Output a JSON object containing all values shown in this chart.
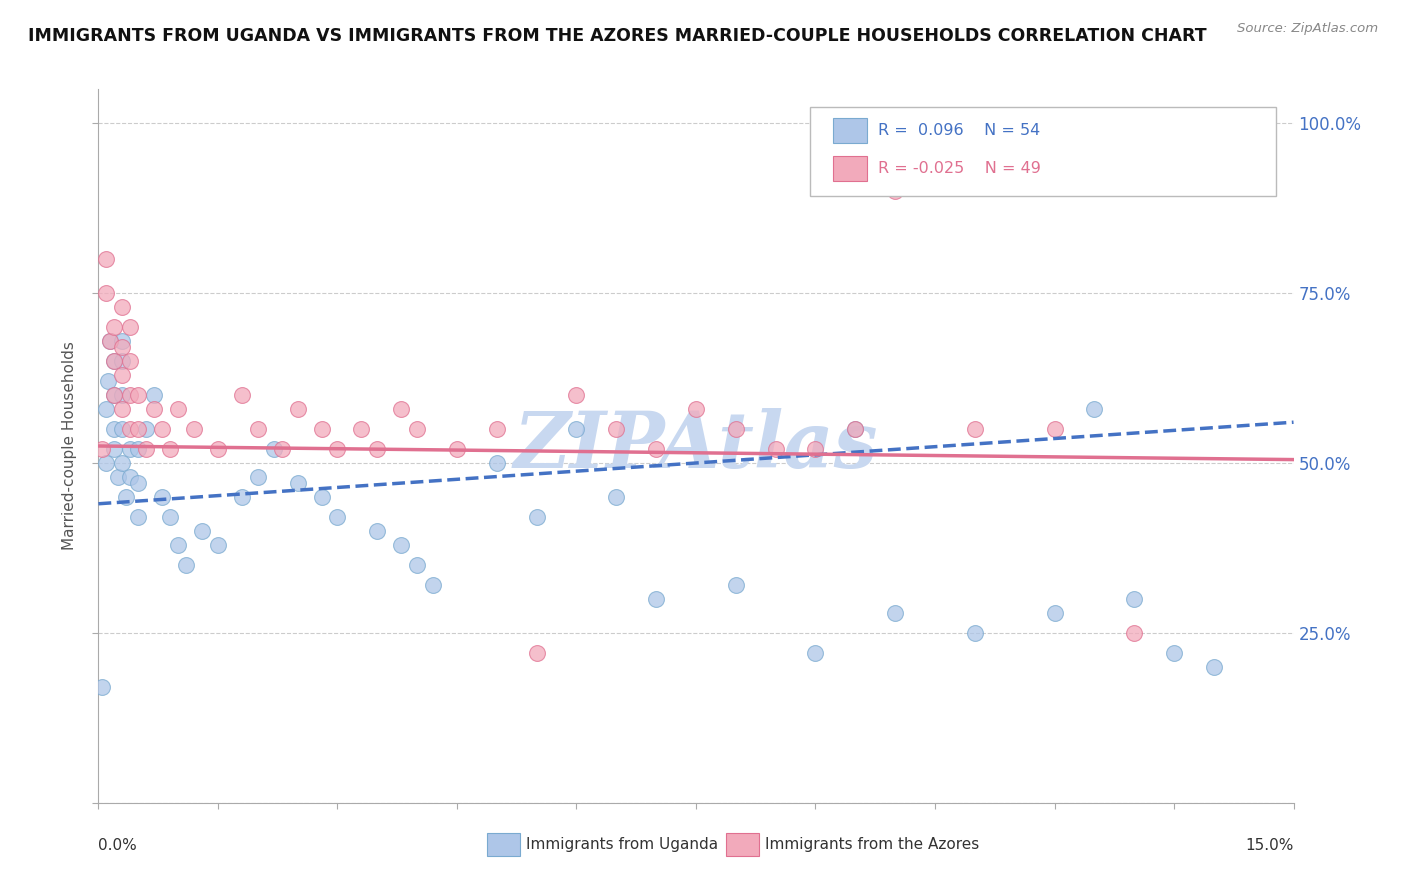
{
  "title": "IMMIGRANTS FROM UGANDA VS IMMIGRANTS FROM THE AZORES MARRIED-COUPLE HOUSEHOLDS CORRELATION CHART",
  "source": "Source: ZipAtlas.com",
  "ylabel": "Married-couple Households",
  "legend_blue_r": "R =  0.096",
  "legend_blue_n": "N = 54",
  "legend_pink_r": "R = -0.025",
  "legend_pink_n": "N = 49",
  "legend_label_blue": "Immigrants from Uganda",
  "legend_label_pink": "Immigrants from the Azores",
  "blue_color": "#AEC6E8",
  "pink_color": "#F2AABB",
  "blue_edge_color": "#7AAAD0",
  "pink_edge_color": "#E07090",
  "blue_line_color": "#4472C4",
  "pink_line_color": "#E07090",
  "watermark": "ZIPAtlas",
  "watermark_color": "#C8D8F0",
  "xlim": [
    0.0,
    0.15
  ],
  "ylim": [
    0.0,
    1.05
  ],
  "blue_x": [
    0.0005,
    0.001,
    0.001,
    0.0012,
    0.0015,
    0.002,
    0.002,
    0.002,
    0.002,
    0.0025,
    0.003,
    0.003,
    0.003,
    0.003,
    0.003,
    0.0035,
    0.004,
    0.004,
    0.005,
    0.005,
    0.005,
    0.006,
    0.007,
    0.008,
    0.009,
    0.01,
    0.011,
    0.013,
    0.015,
    0.018,
    0.02,
    0.022,
    0.025,
    0.028,
    0.03,
    0.035,
    0.038,
    0.04,
    0.042,
    0.05,
    0.055,
    0.06,
    0.065,
    0.07,
    0.08,
    0.09,
    0.095,
    0.1,
    0.11,
    0.12,
    0.125,
    0.13,
    0.135,
    0.14
  ],
  "blue_y": [
    0.17,
    0.5,
    0.58,
    0.62,
    0.68,
    0.52,
    0.55,
    0.6,
    0.65,
    0.48,
    0.5,
    0.55,
    0.6,
    0.65,
    0.68,
    0.45,
    0.48,
    0.52,
    0.42,
    0.47,
    0.52,
    0.55,
    0.6,
    0.45,
    0.42,
    0.38,
    0.35,
    0.4,
    0.38,
    0.45,
    0.48,
    0.52,
    0.47,
    0.45,
    0.42,
    0.4,
    0.38,
    0.35,
    0.32,
    0.5,
    0.42,
    0.55,
    0.45,
    0.3,
    0.32,
    0.22,
    0.55,
    0.28,
    0.25,
    0.28,
    0.58,
    0.3,
    0.22,
    0.2
  ],
  "pink_x": [
    0.0005,
    0.001,
    0.001,
    0.0015,
    0.002,
    0.002,
    0.002,
    0.003,
    0.003,
    0.003,
    0.003,
    0.004,
    0.004,
    0.004,
    0.004,
    0.005,
    0.005,
    0.006,
    0.007,
    0.008,
    0.009,
    0.01,
    0.012,
    0.015,
    0.018,
    0.02,
    0.023,
    0.025,
    0.028,
    0.03,
    0.033,
    0.035,
    0.038,
    0.04,
    0.045,
    0.05,
    0.055,
    0.06,
    0.065,
    0.07,
    0.075,
    0.08,
    0.085,
    0.09,
    0.095,
    0.1,
    0.11,
    0.12,
    0.13
  ],
  "pink_y": [
    0.52,
    0.8,
    0.75,
    0.68,
    0.6,
    0.65,
    0.7,
    0.58,
    0.63,
    0.67,
    0.73,
    0.55,
    0.6,
    0.65,
    0.7,
    0.55,
    0.6,
    0.52,
    0.58,
    0.55,
    0.52,
    0.58,
    0.55,
    0.52,
    0.6,
    0.55,
    0.52,
    0.58,
    0.55,
    0.52,
    0.55,
    0.52,
    0.58,
    0.55,
    0.52,
    0.55,
    0.22,
    0.6,
    0.55,
    0.52,
    0.58,
    0.55,
    0.52,
    0.52,
    0.55,
    0.9,
    0.55,
    0.55,
    0.25
  ],
  "blue_trend_x": [
    0.0,
    0.15
  ],
  "blue_trend_y": [
    0.44,
    0.56
  ],
  "pink_trend_x": [
    0.0,
    0.15
  ],
  "pink_trend_y": [
    0.525,
    0.505
  ]
}
